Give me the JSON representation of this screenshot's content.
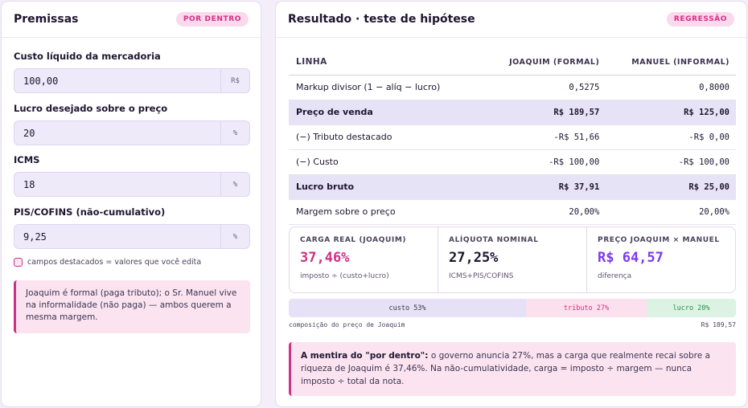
{
  "premissas": {
    "title": "Premissas",
    "badge": "POR DENTRO",
    "fields": [
      {
        "label": "Custo líquido da mercadoria",
        "value": "100,00",
        "unit": "R$"
      },
      {
        "label": "Lucro desejado sobre o preço",
        "value": "20",
        "unit": "%"
      },
      {
        "label": "ICMS",
        "value": "18",
        "unit": "%"
      },
      {
        "label": "PIS/COFINS (não-cumulativo)",
        "value": "9,25",
        "unit": "%"
      }
    ],
    "legend_note": "campos destacados = valores que você edita",
    "note": "Joaquim é formal (paga tributo); o Sr. Manuel vive na informalidade (não paga) — ambos querem a mesma margem."
  },
  "resultado": {
    "title": "Resultado · teste de hipótese",
    "badge": "REGRESSÃO",
    "table": {
      "headers": [
        "LINHA",
        "JOAQUIM (FORMAL)",
        "MANUEL (INFORMAL)"
      ],
      "rows": [
        {
          "label": "Markup divisor (1 − alíq − lucro)",
          "joaquim": "0,5275",
          "manuel": "0,8000",
          "highlight": false
        },
        {
          "label": "Preço de venda",
          "joaquim": "R$ 189,57",
          "manuel": "R$ 125,00",
          "highlight": true
        },
        {
          "label": "(−) Tributo destacado",
          "joaquim": "-R$ 51,66",
          "manuel": "-R$ 0,00",
          "highlight": false
        },
        {
          "label": "(−) Custo",
          "joaquim": "-R$ 100,00",
          "manuel": "-R$ 100,00",
          "highlight": false
        },
        {
          "label": "Lucro bruto",
          "joaquim": "R$ 37,91",
          "manuel": "R$ 25,00",
          "highlight": true
        },
        {
          "label": "Margem sobre o preço",
          "joaquim": "20,00%",
          "manuel": "20,00%",
          "highlight": false
        }
      ]
    },
    "kpis": [
      {
        "label": "CARGA REAL (JOAQUIM)",
        "value": "37,46%",
        "sub": "imposto ÷ (custo+lucro)",
        "color": "#d12f86"
      },
      {
        "label": "ALÍQUOTA NOMINAL",
        "value": "27,25%",
        "sub": "ICMS+PIS/COFINS",
        "color": "#1d1630"
      },
      {
        "label": "PREÇO JOAQUIM × MANUEL",
        "value": "R$ 64,57",
        "sub": "diferença",
        "color": "#7c3aed"
      }
    ],
    "composition": {
      "segments": [
        {
          "label": "custo 53%",
          "share": 0.53,
          "bg": "#e6e1f6",
          "fg": "#3b3350"
        },
        {
          "label": "tributo 27%",
          "share": 0.27,
          "bg": "#fbe0ee",
          "fg": "#d12f86"
        },
        {
          "label": "lucro 20%",
          "share": 0.2,
          "bg": "#dcf3e3",
          "fg": "#2f8a4c"
        }
      ],
      "caption_left": "composição do preço de Joaquim",
      "caption_right": "R$ 189,57"
    },
    "note_bold": "A mentira do \"por dentro\":",
    "note_text": " o governo anuncia 27%, mas a carga que realmente recai sobre a riqueza de Joaquim é 37,46%. Na não-cumulatividade, carga = imposto ÷ margem — nunca imposto ÷ total da nota."
  }
}
